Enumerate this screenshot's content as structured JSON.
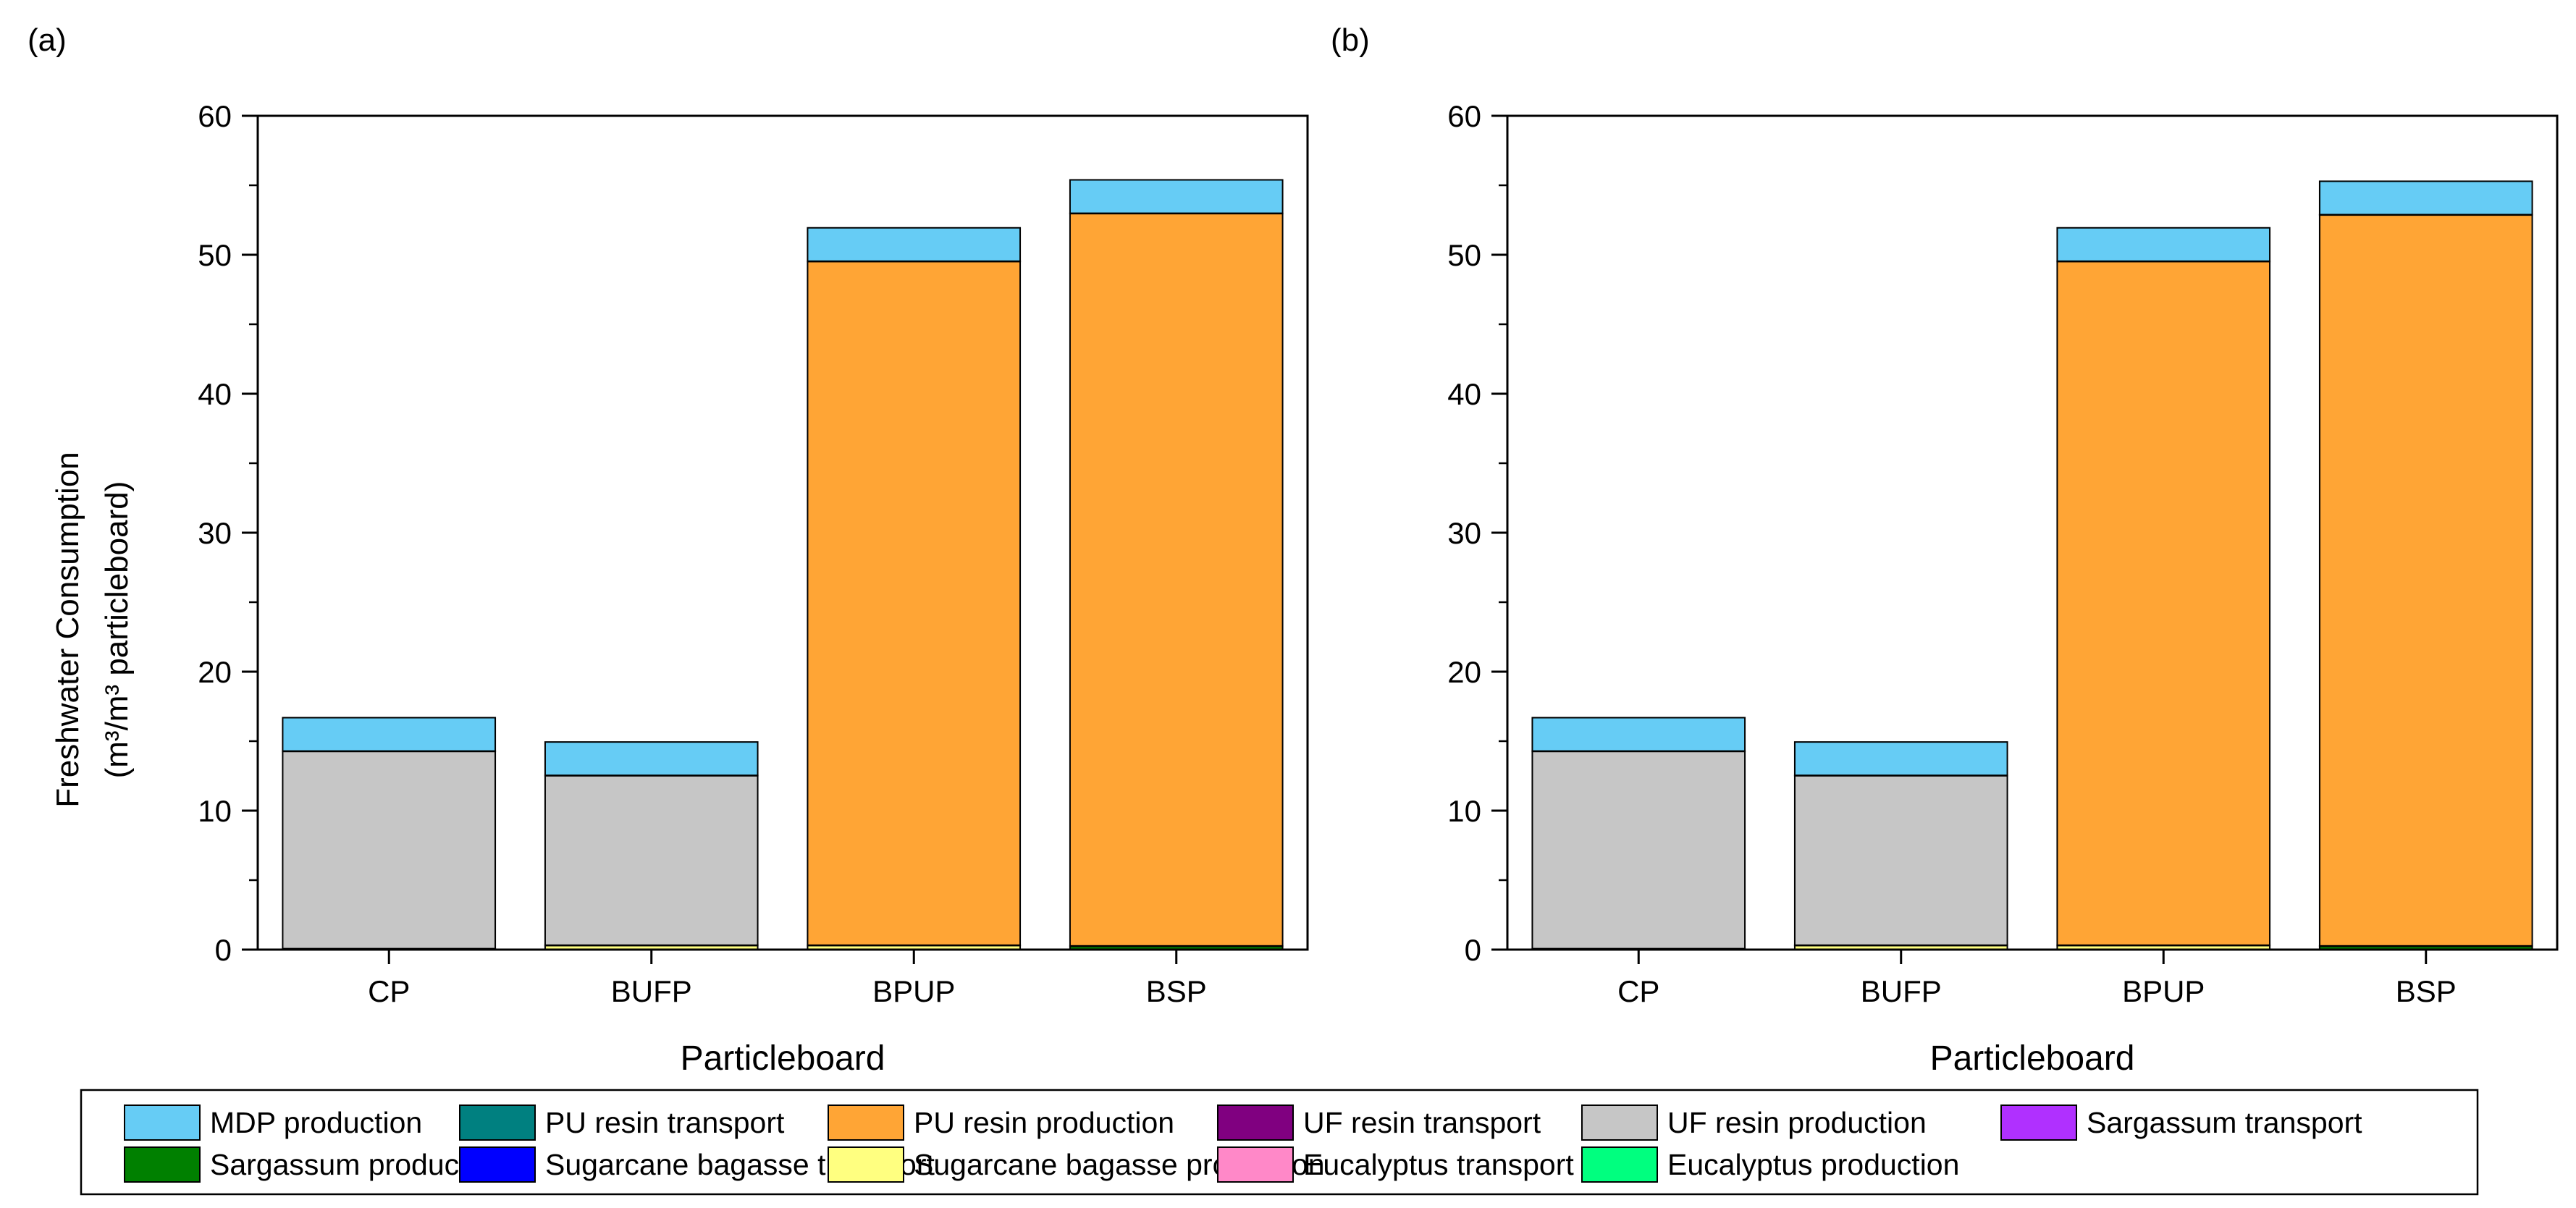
{
  "figure": {
    "ylabel_line1": "Freshwater Consumption",
    "ylabel_line2": "(m³/m³ particleboard)",
    "legend_columns": 6
  },
  "chart_data": [
    {
      "type": "bar",
      "stacked": true,
      "panel_label": "(a)",
      "xlabel": "Particleboard",
      "ylabel": "Freshwater Consumption (m³/m³ particleboard)",
      "ylim": [
        0,
        60
      ],
      "yticks": [
        0,
        10,
        20,
        30,
        40,
        50,
        60
      ],
      "grid": false,
      "legend_position": "bottom",
      "categories": [
        "CP",
        "BUFP",
        "BPUP",
        "BSP"
      ],
      "series": [
        {
          "name": "Eucalyptus production",
          "color": "#00ff7f",
          "values": [
            0.05,
            0,
            0,
            0
          ]
        },
        {
          "name": "Eucalyptus transport",
          "color": "#ff88c8",
          "values": [
            0.02,
            0,
            0,
            0
          ]
        },
        {
          "name": "Sugarcane bagasse production",
          "color": "#ffff80",
          "values": [
            0,
            0.3,
            0.3,
            0
          ]
        },
        {
          "name": "Sugarcane bagasse transport",
          "color": "#0000ff",
          "values": [
            0,
            0.02,
            0.02,
            0
          ]
        },
        {
          "name": "Sargassum production",
          "color": "#008000",
          "values": [
            0,
            0,
            0,
            0.25
          ]
        },
        {
          "name": "Sargassum transport",
          "color": "#b030ff",
          "values": [
            0,
            0,
            0,
            0.02
          ]
        },
        {
          "name": "UF resin production",
          "color": "#c6c6c6",
          "values": [
            14.2,
            12.2,
            0,
            0
          ]
        },
        {
          "name": "UF resin transport",
          "color": "#800080",
          "values": [
            0.02,
            0.02,
            0,
            0
          ]
        },
        {
          "name": "PU resin production",
          "color": "#ffa535",
          "values": [
            0,
            0,
            49.2,
            52.7
          ]
        },
        {
          "name": "PU resin transport",
          "color": "#008080",
          "values": [
            0,
            0,
            0.02,
            0.02
          ]
        },
        {
          "name": "MDP production",
          "color": "#66ccf5",
          "values": [
            2.4,
            2.4,
            2.4,
            2.4
          ]
        }
      ]
    },
    {
      "type": "bar",
      "stacked": true,
      "panel_label": "(b)",
      "xlabel": "Particleboard",
      "ylabel": "",
      "ylim": [
        0,
        60
      ],
      "yticks": [
        0,
        10,
        20,
        30,
        40,
        50,
        60
      ],
      "grid": false,
      "legend_position": "bottom",
      "categories": [
        "CP",
        "BUFP",
        "BPUP",
        "BSP"
      ],
      "series": [
        {
          "name": "Eucalyptus production",
          "color": "#00ff7f",
          "values": [
            0.05,
            0,
            0,
            0
          ]
        },
        {
          "name": "Eucalyptus transport",
          "color": "#ff88c8",
          "values": [
            0.02,
            0,
            0,
            0
          ]
        },
        {
          "name": "Sugarcane bagasse production",
          "color": "#ffff80",
          "values": [
            0,
            0.3,
            0.3,
            0
          ]
        },
        {
          "name": "Sugarcane bagasse transport",
          "color": "#0000ff",
          "values": [
            0,
            0.02,
            0.02,
            0
          ]
        },
        {
          "name": "Sargassum production",
          "color": "#008000",
          "values": [
            0,
            0,
            0,
            0.25
          ]
        },
        {
          "name": "Sargassum transport",
          "color": "#b030ff",
          "values": [
            0,
            0,
            0,
            0.02
          ]
        },
        {
          "name": "UF resin production",
          "color": "#c6c6c6",
          "values": [
            14.2,
            12.2,
            0,
            0
          ]
        },
        {
          "name": "UF resin transport",
          "color": "#800080",
          "values": [
            0.02,
            0.02,
            0,
            0
          ]
        },
        {
          "name": "PU resin production",
          "color": "#ffa535",
          "values": [
            0,
            0,
            49.2,
            52.6
          ]
        },
        {
          "name": "PU resin transport",
          "color": "#008080",
          "values": [
            0,
            0,
            0.02,
            0.02
          ]
        },
        {
          "name": "MDP production",
          "color": "#66ccf5",
          "values": [
            2.4,
            2.4,
            2.4,
            2.4
          ]
        }
      ]
    }
  ],
  "legend": {
    "items": [
      {
        "label": "MDP production",
        "color": "#66ccf5"
      },
      {
        "label": "PU resin transport",
        "color": "#008080"
      },
      {
        "label": "PU resin production",
        "color": "#ffa535"
      },
      {
        "label": "UF resin transport",
        "color": "#800080"
      },
      {
        "label": "UF resin production",
        "color": "#c6c6c6"
      },
      {
        "label": "Sargassum transport",
        "color": "#b030ff"
      },
      {
        "label": "Sargassum production",
        "color": "#008000"
      },
      {
        "label": "Sugarcane bagasse transport",
        "color": "#0000ff"
      },
      {
        "label": "Sugarcane bagasse production",
        "color": "#ffff80"
      },
      {
        "label": "Eucalyptus transport",
        "color": "#ff88c8"
      },
      {
        "label": "Eucalyptus production",
        "color": "#00ff7f"
      }
    ]
  }
}
